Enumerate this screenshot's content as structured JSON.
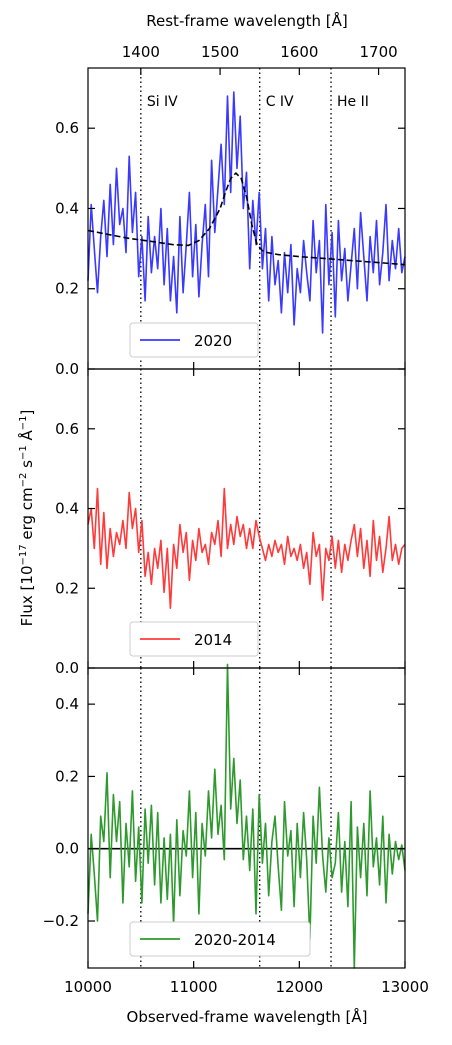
{
  "chart_data": {
    "type": "line",
    "top_axis": {
      "label": "Rest-frame wavelength [Å]",
      "ticks": [
        1400,
        1500,
        1600,
        1700
      ],
      "rest_obs_factor": 7.5
    },
    "xlabel": "Observed-frame wavelength [Å]",
    "ylabel_main": "Flux [10",
    "ylabel_exp1": "−17",
    "ylabel_mid1": " erg cm",
    "ylabel_exp2": "−2",
    "ylabel_mid2": " s",
    "ylabel_exp3": "−1",
    "ylabel_mid3": " Å",
    "ylabel_exp4": "−1",
    "ylabel_end": "]",
    "xlim": [
      10000,
      13000
    ],
    "xticks": [
      10000,
      11000,
      12000,
      13000
    ],
    "vlines": [
      {
        "x": 10500,
        "label": "Si IV"
      },
      {
        "x": 11625,
        "label": "C IV"
      },
      {
        "x": 12300,
        "label": "He II"
      }
    ],
    "panels": [
      {
        "name": "2020",
        "color": "#3a3aff",
        "ylim": [
          0.0,
          0.75
        ],
        "yticks": [
          0.0,
          0.2,
          0.4,
          0.6
        ],
        "ytick_labels": [
          "0.0",
          "0.2",
          "0.4",
          "0.6"
        ],
        "legend_label": "2020",
        "x": [
          10000,
          10030,
          10060,
          10090,
          10120,
          10150,
          10180,
          10210,
          10240,
          10270,
          10300,
          10330,
          10360,
          10390,
          10420,
          10450,
          10480,
          10510,
          10540,
          10570,
          10600,
          10630,
          10660,
          10690,
          10720,
          10750,
          10780,
          10810,
          10840,
          10870,
          10900,
          10930,
          10960,
          10990,
          11020,
          11050,
          11080,
          11110,
          11140,
          11170,
          11200,
          11230,
          11260,
          11290,
          11320,
          11350,
          11380,
          11410,
          11440,
          11470,
          11500,
          11530,
          11560,
          11590,
          11620,
          11650,
          11680,
          11710,
          11740,
          11770,
          11800,
          11830,
          11860,
          11890,
          11920,
          11950,
          11980,
          12010,
          12040,
          12070,
          12100,
          12130,
          12160,
          12190,
          12220,
          12250,
          12280,
          12310,
          12340,
          12370,
          12400,
          12430,
          12460,
          12490,
          12520,
          12550,
          12580,
          12610,
          12640,
          12670,
          12700,
          12730,
          12760,
          12790,
          12820,
          12850,
          12880,
          12910,
          12940,
          12970,
          13000
        ],
        "values": [
          0.22,
          0.41,
          0.3,
          0.19,
          0.33,
          0.42,
          0.28,
          0.46,
          0.31,
          0.5,
          0.36,
          0.4,
          0.29,
          0.53,
          0.34,
          0.44,
          0.23,
          0.33,
          0.17,
          0.38,
          0.24,
          0.33,
          0.25,
          0.4,
          0.21,
          0.35,
          0.17,
          0.28,
          0.14,
          0.38,
          0.19,
          0.31,
          0.44,
          0.23,
          0.36,
          0.18,
          0.31,
          0.41,
          0.23,
          0.52,
          0.34,
          0.45,
          0.56,
          0.41,
          0.68,
          0.44,
          0.69,
          0.5,
          0.63,
          0.4,
          0.49,
          0.25,
          0.42,
          0.31,
          0.44,
          0.25,
          0.35,
          0.17,
          0.33,
          0.21,
          0.27,
          0.14,
          0.29,
          0.19,
          0.31,
          0.11,
          0.25,
          0.19,
          0.32,
          0.24,
          0.17,
          0.37,
          0.24,
          0.32,
          0.09,
          0.41,
          0.21,
          0.34,
          0.13,
          0.37,
          0.22,
          0.3,
          0.17,
          0.26,
          0.35,
          0.2,
          0.39,
          0.28,
          0.17,
          0.33,
          0.24,
          0.37,
          0.21,
          0.29,
          0.41,
          0.22,
          0.32,
          0.25,
          0.35,
          0.24,
          0.28
        ],
        "model": {
          "x": [
            10000,
            10200,
            10400,
            10600,
            10800,
            10950,
            11050,
            11150,
            11250,
            11300,
            11350,
            11400,
            11450,
            11500,
            11550,
            11600,
            11650,
            11700,
            11800,
            12000,
            12200,
            12400,
            12600,
            12800,
            13000
          ],
          "values": [
            0.345,
            0.335,
            0.325,
            0.318,
            0.31,
            0.308,
            0.32,
            0.35,
            0.4,
            0.44,
            0.475,
            0.488,
            0.475,
            0.43,
            0.36,
            0.31,
            0.295,
            0.29,
            0.285,
            0.28,
            0.276,
            0.272,
            0.268,
            0.264,
            0.26
          ]
        }
      },
      {
        "name": "2014",
        "color": "#ff3a3a",
        "ylim": [
          0.0,
          0.75
        ],
        "yticks": [
          0.0,
          0.2,
          0.4,
          0.6
        ],
        "ytick_labels": [
          "0.0",
          "0.2",
          "0.4",
          "0.6"
        ],
        "legend_label": "2014",
        "x": [
          10000,
          10030,
          10060,
          10090,
          10120,
          10150,
          10180,
          10210,
          10240,
          10270,
          10300,
          10330,
          10360,
          10390,
          10420,
          10450,
          10480,
          10510,
          10540,
          10570,
          10600,
          10630,
          10660,
          10690,
          10720,
          10750,
          10780,
          10810,
          10840,
          10870,
          10900,
          10930,
          10960,
          10990,
          11020,
          11050,
          11080,
          11110,
          11140,
          11170,
          11200,
          11230,
          11260,
          11290,
          11320,
          11350,
          11380,
          11410,
          11440,
          11470,
          11500,
          11530,
          11560,
          11590,
          11620,
          11650,
          11680,
          11710,
          11740,
          11770,
          11800,
          11830,
          11860,
          11890,
          11920,
          11950,
          11980,
          12010,
          12040,
          12070,
          12100,
          12130,
          12160,
          12190,
          12220,
          12250,
          12280,
          12310,
          12340,
          12370,
          12400,
          12430,
          12460,
          12490,
          12520,
          12550,
          12580,
          12610,
          12640,
          12670,
          12700,
          12730,
          12760,
          12790,
          12820,
          12850,
          12880,
          12910,
          12940,
          12970,
          13000
        ],
        "values": [
          0.36,
          0.4,
          0.3,
          0.45,
          0.26,
          0.39,
          0.25,
          0.35,
          0.28,
          0.34,
          0.31,
          0.37,
          0.3,
          0.44,
          0.35,
          0.4,
          0.29,
          0.37,
          0.23,
          0.29,
          0.21,
          0.3,
          0.25,
          0.32,
          0.19,
          0.3,
          0.15,
          0.31,
          0.25,
          0.36,
          0.29,
          0.34,
          0.22,
          0.32,
          0.27,
          0.35,
          0.29,
          0.31,
          0.26,
          0.34,
          0.31,
          0.37,
          0.28,
          0.45,
          0.3,
          0.36,
          0.31,
          0.38,
          0.33,
          0.36,
          0.3,
          0.35,
          0.3,
          0.37,
          0.33,
          0.3,
          0.27,
          0.31,
          0.28,
          0.32,
          0.29,
          0.31,
          0.26,
          0.33,
          0.28,
          0.3,
          0.27,
          0.31,
          0.25,
          0.29,
          0.21,
          0.34,
          0.28,
          0.31,
          0.17,
          0.3,
          0.27,
          0.33,
          0.25,
          0.32,
          0.24,
          0.31,
          0.27,
          0.32,
          0.36,
          0.28,
          0.35,
          0.25,
          0.32,
          0.23,
          0.37,
          0.27,
          0.33,
          0.24,
          0.3,
          0.38,
          0.27,
          0.31,
          0.26,
          0.3,
          0.31
        ]
      },
      {
        "name": "2020-2014",
        "color": "#2e9a2e",
        "ylim": [
          -0.33,
          0.5
        ],
        "yticks": [
          -0.2,
          0.0,
          0.2,
          0.4
        ],
        "ytick_labels": [
          "−0.2",
          "0.0",
          "0.2",
          "0.4"
        ],
        "legend_label": "2020-2014",
        "zero_line": true,
        "x": [
          10000,
          10030,
          10060,
          10090,
          10120,
          10150,
          10180,
          10210,
          10240,
          10270,
          10300,
          10330,
          10360,
          10390,
          10420,
          10450,
          10480,
          10510,
          10540,
          10570,
          10600,
          10630,
          10660,
          10690,
          10720,
          10750,
          10780,
          10810,
          10840,
          10870,
          10900,
          10930,
          10960,
          10990,
          11020,
          11050,
          11080,
          11110,
          11140,
          11170,
          11200,
          11230,
          11260,
          11290,
          11320,
          11350,
          11380,
          11410,
          11440,
          11470,
          11500,
          11530,
          11560,
          11590,
          11620,
          11650,
          11680,
          11710,
          11740,
          11770,
          11800,
          11830,
          11860,
          11890,
          11920,
          11950,
          11980,
          12010,
          12040,
          12070,
          12100,
          12130,
          12160,
          12190,
          12220,
          12250,
          12280,
          12310,
          12340,
          12370,
          12400,
          12430,
          12460,
          12490,
          12520,
          12550,
          12580,
          12610,
          12640,
          12670,
          12700,
          12730,
          12760,
          12790,
          12820,
          12850,
          12880,
          12910,
          12940,
          12970,
          13000
        ],
        "values": [
          -0.18,
          0.04,
          -0.07,
          -0.2,
          0.09,
          0.02,
          0.21,
          -0.08,
          0.15,
          0.02,
          0.13,
          -0.15,
          0.07,
          -0.05,
          0.16,
          -0.09,
          0.06,
          -0.15,
          0.11,
          -0.04,
          0.12,
          -0.1,
          0.1,
          -0.15,
          0.03,
          -0.14,
          0.04,
          -0.21,
          0.08,
          -0.13,
          0.05,
          -0.02,
          0.16,
          -0.08,
          0.1,
          -0.18,
          0.07,
          -0.02,
          0.16,
          0.03,
          0.22,
          0.04,
          0.12,
          -0.03,
          0.51,
          0.11,
          0.25,
          0.07,
          0.19,
          -0.03,
          0.09,
          -0.06,
          0.11,
          -0.18,
          0.15,
          -0.04,
          0.07,
          -0.13,
          0.02,
          0.09,
          -0.05,
          -0.17,
          0.13,
          -0.02,
          0.05,
          -0.16,
          0.07,
          -0.08,
          0.1,
          -0.03,
          -0.25,
          0.09,
          -0.04,
          0.17,
          -0.02,
          -0.12,
          0.03,
          -0.08,
          -0.04,
          0.1,
          -0.12,
          0.02,
          -0.16,
          0.13,
          -0.33,
          0.06,
          -0.08,
          0.07,
          -0.13,
          0.16,
          -0.05,
          0.03,
          -0.1,
          0.09,
          -0.15,
          0.04,
          -0.07,
          0.02,
          -0.03,
          0.01,
          -0.06
        ]
      }
    ]
  }
}
